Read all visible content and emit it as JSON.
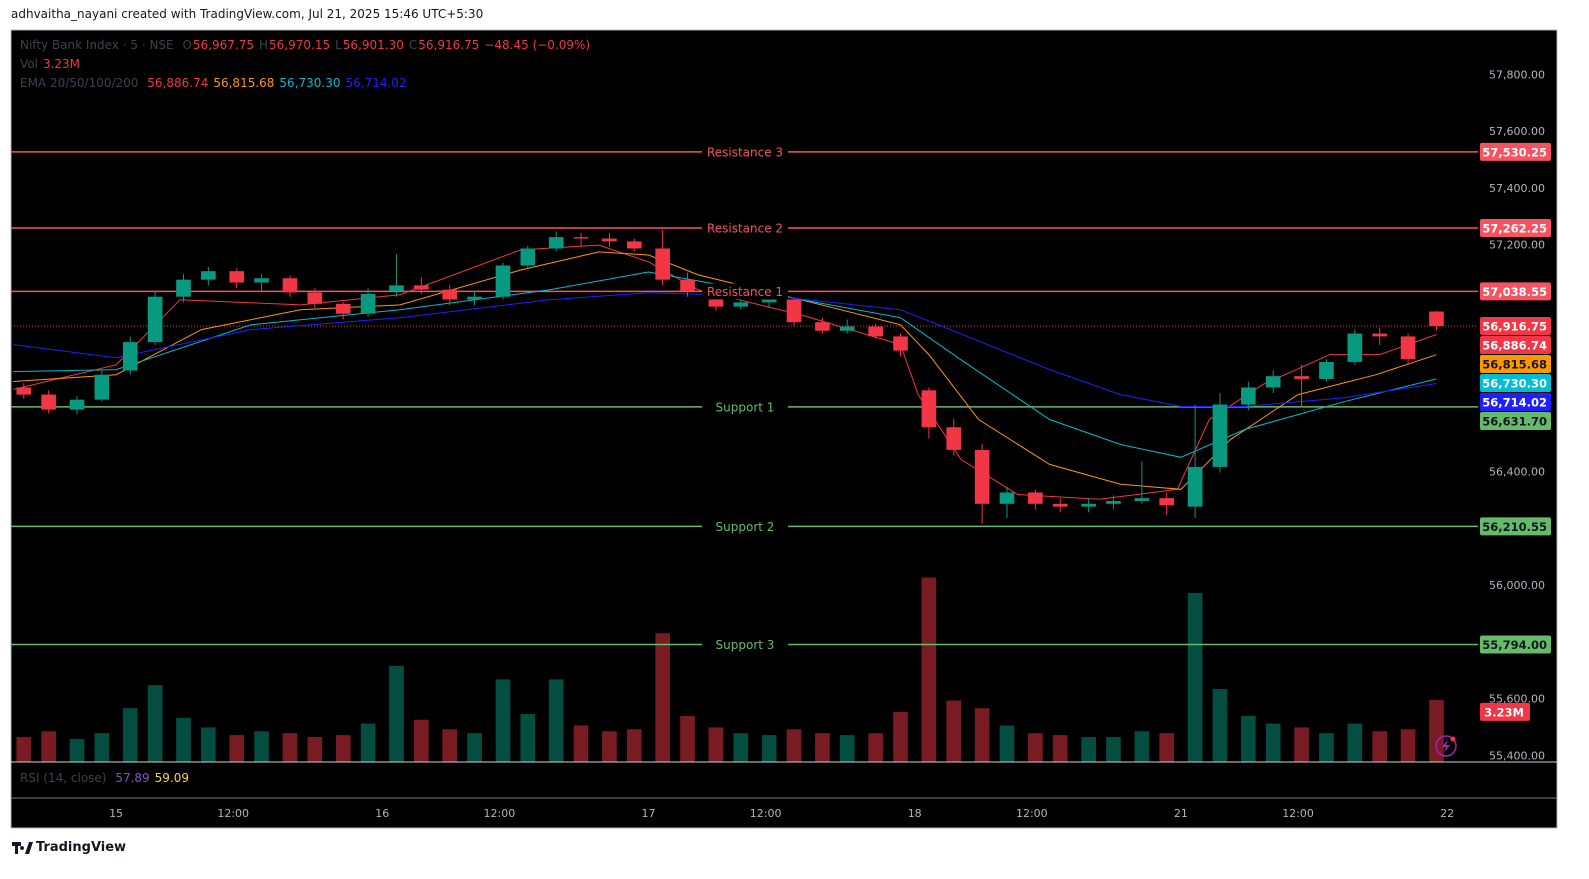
{
  "header": {
    "text": "adhvaitha_nayani created with TradingView.com, Jul 21, 2025 15:46 UTC+5:30"
  },
  "chart_data": {
    "type": "candlestick",
    "title": "Nifty Bank Index · 5 · NSE",
    "ohlc_legend": [
      {
        "label": "O",
        "value": "56,967.75"
      },
      {
        "label": "H",
        "value": "56,970.15"
      },
      {
        "label": "L",
        "value": "56,901.30"
      },
      {
        "label": "C",
        "value": "56,916.75"
      }
    ],
    "change": "−48.45 (−0.09%)",
    "volume_legend": {
      "label": "Vol",
      "value": "3.23M"
    },
    "ema_legend": "EMA 20/50/100/200",
    "rsi_legend": {
      "label": "RSI (14, close)",
      "values": [
        "57.89",
        "59.09"
      ],
      "colors": [
        "#7e57c2",
        "#f5d742"
      ]
    },
    "x": [
      -26,
      -19,
      -11,
      -4,
      4,
      11,
      19,
      26,
      34,
      41,
      49,
      56,
      64,
      71,
      79,
      86,
      94,
      101,
      109,
      116,
      124,
      131,
      139,
      146,
      154,
      161,
      169,
      176,
      184,
      191,
      199,
      206,
      214,
      221,
      229,
      236,
      244,
      251,
      259,
      266,
      274,
      281,
      289,
      296,
      304,
      311,
      319,
      326,
      334,
      341,
      349,
      356,
      364,
      372
    ],
    "open": [
      56700,
      56675,
      56622,
      56657,
      56760,
      56860,
      57020,
      57080,
      57110,
      57070,
      57085,
      57035,
      56995,
      56960,
      57040,
      57060,
      57045,
      57010,
      57020,
      57130,
      57190,
      57230,
      57225,
      57215,
      57190,
      57080,
      57040,
      56985,
      57000,
      57010,
      56930,
      56900,
      56915,
      56880,
      56690,
      56560,
      56480,
      56290,
      56330,
      56290,
      56280,
      56290,
      56300,
      56310,
      56280,
      56420,
      56640,
      56700,
      56740,
      56730,
      56790,
      56890,
      56880,
      56967.75
    ],
    "high": [
      56715,
      56690,
      56670,
      56760,
      56880,
      57040,
      57100,
      57125,
      57120,
      57100,
      57095,
      57050,
      57000,
      57050,
      57170,
      57090,
      57060,
      57040,
      57140,
      57200,
      57250,
      57245,
      57245,
      57225,
      57255,
      57105,
      57060,
      57030,
      57030,
      57015,
      56945,
      56940,
      56925,
      56890,
      56700,
      56590,
      56500,
      56350,
      56340,
      56310,
      56310,
      56320,
      56440,
      56330,
      56640,
      56680,
      56720,
      56760,
      56780,
      56800,
      56905,
      56910,
      56890,
      56970.15
    ],
    "low": [
      56660,
      56610,
      56605,
      56650,
      56745,
      56850,
      57000,
      57060,
      57050,
      57040,
      57020,
      56980,
      56940,
      56950,
      57020,
      57030,
      56990,
      56990,
      57010,
      57120,
      57180,
      57200,
      57195,
      57180,
      57060,
      57020,
      56970,
      56975,
      56980,
      56915,
      56890,
      56890,
      56870,
      56810,
      56520,
      56460,
      56220,
      56240,
      56270,
      56260,
      56260,
      56270,
      56290,
      56250,
      56240,
      56400,
      56620,
      56680,
      56630,
      56720,
      56780,
      56850,
      56780,
      56901.3
    ],
    "close": [
      56675,
      56622,
      56657,
      56745,
      56860,
      57020,
      57080,
      57110,
      57070,
      57085,
      57035,
      56995,
      56960,
      57030,
      57060,
      57045,
      57010,
      57020,
      57130,
      57190,
      57230,
      57225,
      57215,
      57190,
      57080,
      57040,
      56985,
      57000,
      57010,
      56930,
      56900,
      56915,
      56880,
      56830,
      56560,
      56480,
      56290,
      56330,
      56290,
      56280,
      56290,
      56300,
      56310,
      56285,
      56420,
      56640,
      56700,
      56740,
      56730,
      56790,
      56890,
      56880,
      56800,
      56916.75
    ],
    "close_label": "56,916.75",
    "volume": [
      1.3,
      1.6,
      1.2,
      1.5,
      2.8,
      4.0,
      2.3,
      1.8,
      1.4,
      1.6,
      1.5,
      1.3,
      1.4,
      2.0,
      5.0,
      2.2,
      1.7,
      1.5,
      4.3,
      2.5,
      4.3,
      1.9,
      1.6,
      1.7,
      6.7,
      2.4,
      1.8,
      1.5,
      1.4,
      1.7,
      1.5,
      1.4,
      1.5,
      2.6,
      9.6,
      3.2,
      2.8,
      1.9,
      1.5,
      1.4,
      1.3,
      1.3,
      1.6,
      1.5,
      8.8,
      3.8,
      2.4,
      2.0,
      1.8,
      1.5,
      2.0,
      1.6,
      1.7,
      3.23
    ],
    "up_color": "#089981",
    "down_color": "#f23645",
    "vlim": [
      0,
      11.5
    ],
    "ema": [
      {
        "color": "#f23645",
        "label": "56,886.74",
        "x": [
          -29,
          0,
          18,
          52,
          80,
          114,
          136,
          150,
          164,
          193,
          221,
          226,
          238,
          254,
          277,
          299,
          308,
          323,
          342,
          356,
          372
        ],
        "values": [
          56693,
          56780,
          57009,
          56991,
          57027,
          57185,
          57202,
          57143,
          57044,
          56956,
          56851,
          56675,
          56447,
          56323,
          56306,
          56341,
          56587,
          56710,
          56816,
          56816,
          56886.74
        ]
      },
      {
        "color": "#ff9800",
        "label": "56,815.68",
        "x": [
          -29,
          0,
          24,
          52,
          80,
          114,
          136,
          150,
          164,
          193,
          221,
          229,
          243,
          263,
          283,
          300,
          314,
          333,
          355,
          372
        ],
        "values": [
          56721,
          56745,
          56904,
          56974,
          56991,
          57114,
          57178,
          57167,
          57097,
          57009,
          56921,
          56816,
          56587,
          56429,
          56359,
          56341,
          56517,
          56675,
          56745,
          56815.68
        ]
      },
      {
        "color": "#00bcd4",
        "label": "56,730.30",
        "x": [
          -29,
          0,
          38,
          80,
          122,
          150,
          178,
          221,
          238,
          263,
          283,
          300,
          318,
          346,
          372
        ],
        "values": [
          56756,
          56763,
          56921,
          56974,
          57044,
          57107,
          57044,
          56946,
          56798,
          56587,
          56499,
          56454,
          56552,
          56650,
          56730.3
        ]
      },
      {
        "color": "#1f1fff",
        "label": "56,714.02",
        "x": [
          -29,
          0,
          38,
          80,
          122,
          150,
          187,
          221,
          235,
          263,
          283,
          300,
          318,
          346,
          372
        ],
        "values": [
          56851,
          56805,
          56904,
          56946,
          57009,
          57034,
          57020,
          56974,
          56904,
          56763,
          56675,
          56633,
          56633,
          56664,
          56714.02
        ]
      }
    ],
    "levels": [
      {
        "name": "Resistance 3",
        "value": 57530.25,
        "label": "57,530.25",
        "color": "#f7525f"
      },
      {
        "name": "Resistance 2",
        "value": 57262.25,
        "label": "57,262.25",
        "color": "#f7525f"
      },
      {
        "name": "Resistance 1",
        "value": 57038.55,
        "label": "57,038.55",
        "color": "#f7525f"
      },
      {
        "name": "Support 1",
        "value": 56631.7,
        "label": "56,631.70",
        "color": "#66bb6a"
      },
      {
        "name": "Support 2",
        "value": 56210.55,
        "label": "56,210.55",
        "color": "#66bb6a"
      },
      {
        "name": "Support 3",
        "value": 55794,
        "label": "55,794.00",
        "color": "#66bb6a"
      }
    ],
    "xlim": [
      -29.6,
      383.7
    ],
    "xticks": [
      {
        "value": 0,
        "label": "15"
      },
      {
        "value": 33,
        "label": "12:00"
      },
      {
        "value": 75,
        "label": "16"
      },
      {
        "value": 108,
        "label": "12:00"
      },
      {
        "value": 150,
        "label": "17"
      },
      {
        "value": 183,
        "label": "12:00"
      },
      {
        "value": 225,
        "label": "18"
      },
      {
        "value": 258,
        "label": "12:00"
      },
      {
        "value": 300,
        "label": "21"
      },
      {
        "value": 333,
        "label": "12:00"
      },
      {
        "value": 375,
        "label": "22"
      }
    ],
    "ylim": [
      55380,
      57960
    ],
    "yticks": [
      {
        "value": 57800,
        "label": "57,800.00"
      },
      {
        "value": 57600,
        "label": "57,600.00"
      },
      {
        "value": 57400,
        "label": "57,400.00"
      },
      {
        "value": 57200,
        "label": "57,200.00"
      },
      {
        "value": 56400,
        "label": "56,400.00"
      },
      {
        "value": 56000,
        "label": "56,000.00"
      },
      {
        "value": 55600,
        "label": "55,600.00"
      },
      {
        "value": 55400,
        "label": "55,400.00"
      }
    ],
    "grid": false
  },
  "footer": {
    "brand": "TradingView"
  }
}
